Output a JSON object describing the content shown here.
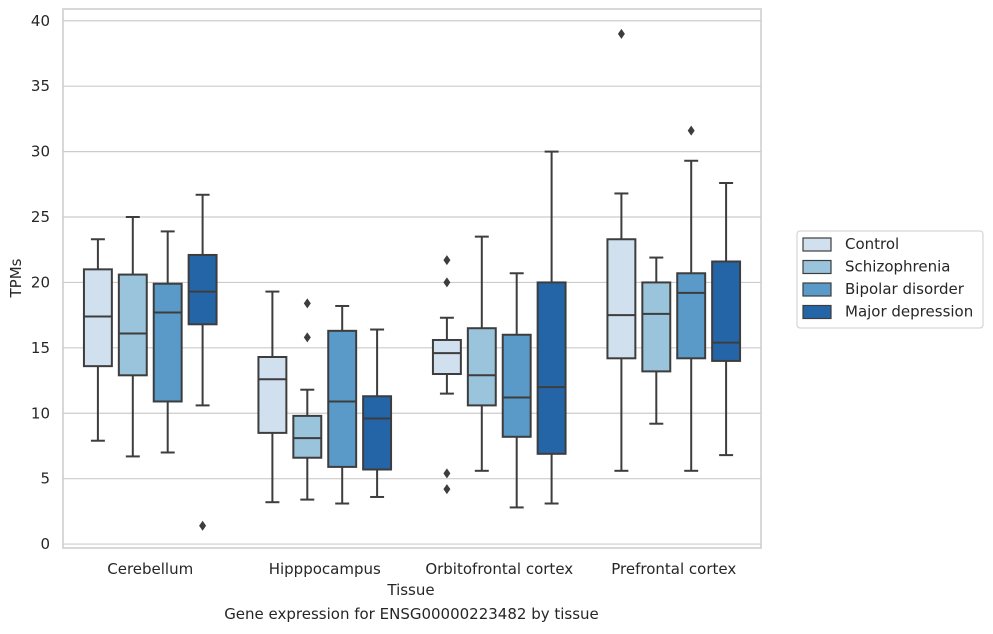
{
  "caption": "Gene expression for ENSG00000223482 by tissue",
  "chart_data": {
    "type": "box",
    "xlabel": "Tissue",
    "ylabel": "TPMs",
    "ylim": [
      -0.3,
      40.9
    ],
    "yticks": [
      0,
      5,
      10,
      15,
      20,
      25,
      30,
      35,
      40
    ],
    "grid": "horizontal",
    "legend_position": "right",
    "categories": [
      "Cerebellum",
      "Hipppocampus",
      "Orbitofrontal cortex",
      "Prefrontal cortex"
    ],
    "series": [
      {
        "name": "Control",
        "color": "#d1e0ef",
        "boxes": [
          {
            "whislo": 7.9,
            "q1": 13.6,
            "med": 17.4,
            "q3": 21.0,
            "whishi": 23.3,
            "fliers": []
          },
          {
            "whislo": 3.2,
            "q1": 8.5,
            "med": 12.6,
            "q3": 14.3,
            "whishi": 19.3,
            "fliers": []
          },
          {
            "whislo": 11.5,
            "q1": 13.0,
            "med": 14.6,
            "q3": 15.6,
            "whishi": 17.3,
            "fliers": [
              21.7,
              20.0,
              5.4,
              4.2
            ]
          },
          {
            "whislo": 5.6,
            "q1": 14.2,
            "med": 17.5,
            "q3": 23.3,
            "whishi": 26.8,
            "fliers": [
              39.0
            ]
          }
        ]
      },
      {
        "name": "Schizophrenia",
        "color": "#9ac3dc",
        "boxes": [
          {
            "whislo": 6.7,
            "q1": 12.9,
            "med": 16.1,
            "q3": 20.6,
            "whishi": 25.0,
            "fliers": []
          },
          {
            "whislo": 3.4,
            "q1": 6.6,
            "med": 8.1,
            "q3": 9.8,
            "whishi": 11.8,
            "fliers": [
              18.4,
              15.8
            ]
          },
          {
            "whislo": 5.6,
            "q1": 10.6,
            "med": 12.9,
            "q3": 16.5,
            "whishi": 23.5,
            "fliers": []
          },
          {
            "whislo": 9.2,
            "q1": 13.2,
            "med": 17.6,
            "q3": 20.0,
            "whishi": 21.9,
            "fliers": []
          }
        ]
      },
      {
        "name": "Bipolar disorder",
        "color": "#5a9ac9",
        "boxes": [
          {
            "whislo": 7.0,
            "q1": 10.9,
            "med": 17.7,
            "q3": 19.9,
            "whishi": 23.9,
            "fliers": []
          },
          {
            "whislo": 3.1,
            "q1": 5.9,
            "med": 10.9,
            "q3": 16.3,
            "whishi": 18.2,
            "fliers": []
          },
          {
            "whislo": 2.8,
            "q1": 8.2,
            "med": 11.2,
            "q3": 16.0,
            "whishi": 20.7,
            "fliers": []
          },
          {
            "whislo": 5.6,
            "q1": 14.2,
            "med": 19.2,
            "q3": 20.7,
            "whishi": 29.3,
            "fliers": [
              31.6
            ]
          }
        ]
      },
      {
        "name": "Major depression",
        "color": "#2465a8",
        "boxes": [
          {
            "whislo": 10.6,
            "q1": 16.8,
            "med": 19.3,
            "q3": 22.1,
            "whishi": 26.7,
            "fliers": [
              1.4
            ]
          },
          {
            "whislo": 3.6,
            "q1": 5.7,
            "med": 9.6,
            "q3": 11.3,
            "whishi": 16.4,
            "fliers": []
          },
          {
            "whislo": 3.1,
            "q1": 6.9,
            "med": 12.0,
            "q3": 20.0,
            "whishi": 30.0,
            "fliers": []
          },
          {
            "whislo": 6.8,
            "q1": 14.0,
            "med": 15.4,
            "q3": 21.6,
            "whishi": 27.6,
            "fliers": []
          }
        ]
      }
    ]
  }
}
